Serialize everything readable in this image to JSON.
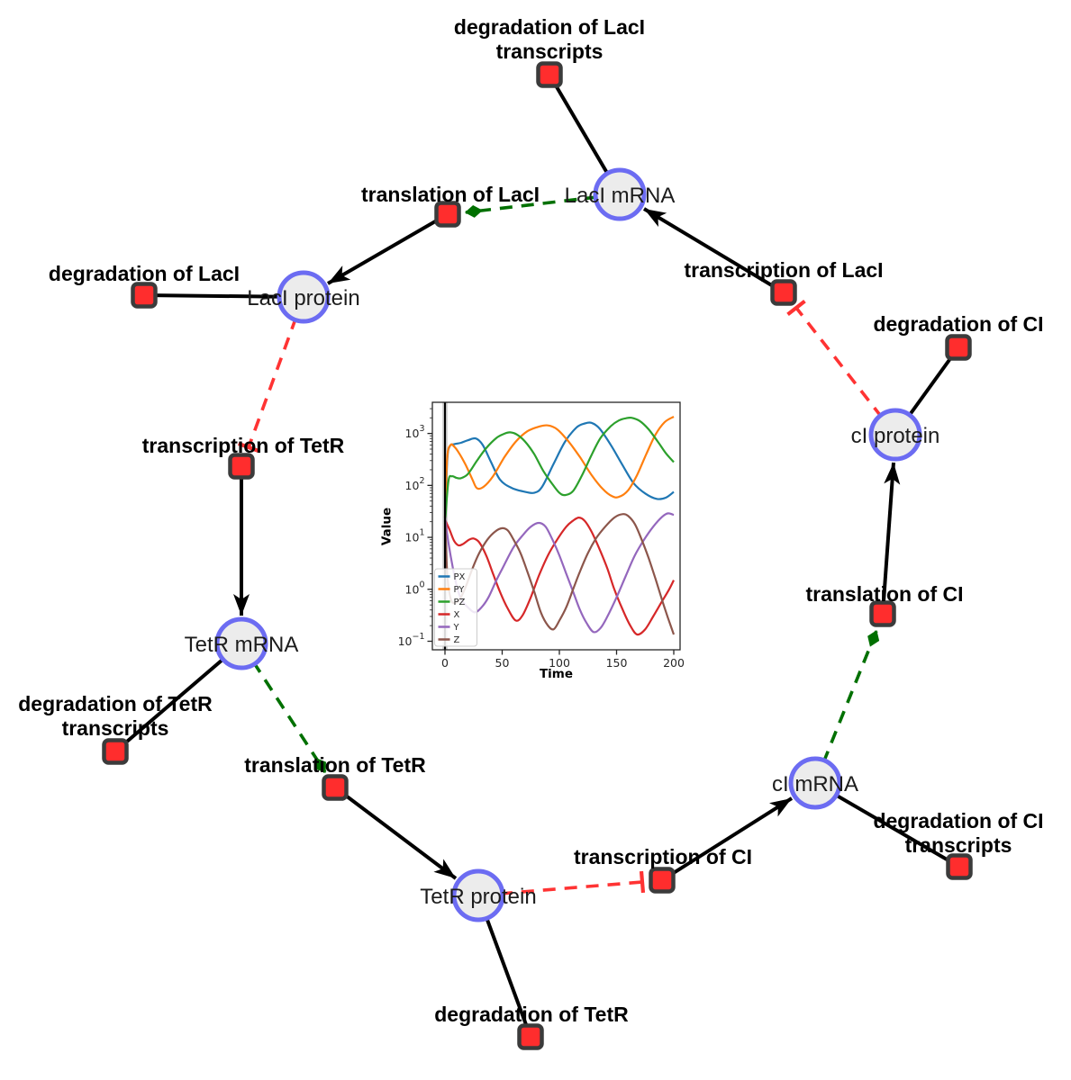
{
  "colors": {
    "species_fill": "#ececec",
    "species_stroke": "#6c6cf2",
    "reaction_fill": "#ff2d2d",
    "reaction_stroke": "#3b3b3b",
    "edge_black": "#000000",
    "edge_modifier_green": "#007000",
    "edge_inhibition_red": "#ff3333"
  },
  "species": {
    "laci_mrna": {
      "label": "LacI mRNA"
    },
    "laci_protein": {
      "label": "LacI protein"
    },
    "tetr_mrna": {
      "label": "TetR mRNA"
    },
    "tetr_protein": {
      "label": "TetR protein"
    },
    "ci_mrna": {
      "label": "cI mRNA"
    },
    "ci_protein": {
      "label": "cI protein"
    }
  },
  "reactions": {
    "deg_laci_tx": {
      "label": "degradation of LacI",
      "label2": "transcripts"
    },
    "tl_laci": {
      "label": "translation of LacI"
    },
    "tx_laci": {
      "label": "transcription of LacI"
    },
    "deg_laci": {
      "label": "degradation of LacI"
    },
    "tx_tetr": {
      "label": "transcription of TetR"
    },
    "deg_tetr_tx": {
      "label": "degradation of TetR",
      "label2": "transcripts"
    },
    "tl_tetr": {
      "label": "translation of TetR"
    },
    "deg_tetr": {
      "label": "degradation of TetR"
    },
    "tx_ci": {
      "label": "transcription of CI"
    },
    "deg_ci_tx": {
      "label": "degradation of CI",
      "label2": "transcripts"
    },
    "tl_ci": {
      "label": "translation of CI"
    },
    "deg_ci": {
      "label": "degradation of CI"
    }
  },
  "chart_data": {
    "type": "line",
    "title": "",
    "xlabel": "Time",
    "ylabel": "Value",
    "x_range": [
      0,
      200
    ],
    "y_scale": "log",
    "y_range_exponents": [
      -1,
      3.6
    ],
    "xticks": [
      0,
      50,
      100,
      150,
      200
    ],
    "ytick_exponents": [
      -1,
      0,
      1,
      2,
      3
    ],
    "grid": false,
    "legend_position": "lower left",
    "vline_at_t": 0,
    "series": [
      {
        "name": "PX",
        "color": "#1f77b4",
        "points": [
          [
            0,
            20
          ],
          [
            2,
            300
          ],
          [
            4,
            560
          ],
          [
            8,
            620
          ],
          [
            14,
            660
          ],
          [
            20,
            740
          ],
          [
            27,
            800
          ],
          [
            33,
            600
          ],
          [
            40,
            290
          ],
          [
            48,
            130
          ],
          [
            58,
            90
          ],
          [
            68,
            77
          ],
          [
            78,
            72
          ],
          [
            85,
            95
          ],
          [
            95,
            260
          ],
          [
            105,
            700
          ],
          [
            115,
            1300
          ],
          [
            122,
            1550
          ],
          [
            128,
            1600
          ],
          [
            135,
            1250
          ],
          [
            145,
            600
          ],
          [
            155,
            250
          ],
          [
            165,
            110
          ],
          [
            175,
            70
          ],
          [
            185,
            55
          ],
          [
            193,
            58
          ],
          [
            200,
            75
          ]
        ]
      },
      {
        "name": "PY",
        "color": "#ff7f0e",
        "points": [
          [
            0,
            25
          ],
          [
            2,
            350
          ],
          [
            5,
            600
          ],
          [
            8,
            560
          ],
          [
            12,
            430
          ],
          [
            18,
            250
          ],
          [
            24,
            130
          ],
          [
            28,
            88
          ],
          [
            34,
            95
          ],
          [
            42,
            150
          ],
          [
            52,
            350
          ],
          [
            62,
            700
          ],
          [
            72,
            1100
          ],
          [
            82,
            1350
          ],
          [
            90,
            1430
          ],
          [
            98,
            1200
          ],
          [
            108,
            700
          ],
          [
            118,
            350
          ],
          [
            128,
            160
          ],
          [
            138,
            85
          ],
          [
            146,
            62
          ],
          [
            152,
            60
          ],
          [
            160,
            80
          ],
          [
            168,
            160
          ],
          [
            176,
            400
          ],
          [
            184,
            950
          ],
          [
            192,
            1650
          ],
          [
            200,
            2100
          ]
        ]
      },
      {
        "name": "PZ",
        "color": "#2ca02c",
        "points": [
          [
            0,
            18
          ],
          [
            3,
            120
          ],
          [
            6,
            150
          ],
          [
            10,
            140
          ],
          [
            14,
            138
          ],
          [
            20,
            165
          ],
          [
            28,
            300
          ],
          [
            36,
            520
          ],
          [
            45,
            820
          ],
          [
            52,
            990
          ],
          [
            57,
            1050
          ],
          [
            63,
            950
          ],
          [
            70,
            700
          ],
          [
            78,
            400
          ],
          [
            86,
            190
          ],
          [
            94,
            105
          ],
          [
            100,
            72
          ],
          [
            105,
            65
          ],
          [
            112,
            78
          ],
          [
            120,
            160
          ],
          [
            128,
            380
          ],
          [
            136,
            820
          ],
          [
            145,
            1380
          ],
          [
            152,
            1780
          ],
          [
            158,
            1960
          ],
          [
            163,
            2000
          ],
          [
            170,
            1750
          ],
          [
            178,
            1200
          ],
          [
            186,
            700
          ],
          [
            193,
            420
          ],
          [
            200,
            280
          ]
        ]
      },
      {
        "name": "X",
        "color": "#d62728",
        "points": [
          [
            0,
            22
          ],
          [
            4,
            14
          ],
          [
            8,
            8.5
          ],
          [
            12,
            7
          ],
          [
            16,
            7.5
          ],
          [
            21,
            9
          ],
          [
            25,
            9.5
          ],
          [
            30,
            8
          ],
          [
            36,
            4.5
          ],
          [
            42,
            2
          ],
          [
            48,
            0.9
          ],
          [
            55,
            0.42
          ],
          [
            62,
            0.25
          ],
          [
            68,
            0.32
          ],
          [
            75,
            0.7
          ],
          [
            82,
            1.8
          ],
          [
            90,
            4.5
          ],
          [
            98,
            9
          ],
          [
            106,
            16
          ],
          [
            112,
            21
          ],
          [
            117,
            24
          ],
          [
            122,
            21
          ],
          [
            128,
            13
          ],
          [
            135,
            6
          ],
          [
            142,
            2.5
          ],
          [
            148,
            1
          ],
          [
            155,
            0.42
          ],
          [
            162,
            0.2
          ],
          [
            168,
            0.135
          ],
          [
            175,
            0.17
          ],
          [
            182,
            0.3
          ],
          [
            190,
            0.6
          ],
          [
            196,
            1
          ],
          [
            200,
            1.5
          ]
        ]
      },
      {
        "name": "Y",
        "color": "#9467bd",
        "points": [
          [
            0,
            25
          ],
          [
            3,
            8
          ],
          [
            7,
            2.5
          ],
          [
            11,
            1
          ],
          [
            15,
            0.6
          ],
          [
            20,
            0.45
          ],
          [
            26,
            0.36
          ],
          [
            32,
            0.45
          ],
          [
            38,
            0.7
          ],
          [
            45,
            1.5
          ],
          [
            52,
            3
          ],
          [
            60,
            6.5
          ],
          [
            68,
            11
          ],
          [
            75,
            16
          ],
          [
            82,
            19
          ],
          [
            88,
            16
          ],
          [
            94,
            9
          ],
          [
            100,
            4.5
          ],
          [
            106,
            2
          ],
          [
            112,
            0.9
          ],
          [
            118,
            0.4
          ],
          [
            124,
            0.22
          ],
          [
            130,
            0.15
          ],
          [
            136,
            0.18
          ],
          [
            142,
            0.3
          ],
          [
            150,
            0.7
          ],
          [
            158,
            1.8
          ],
          [
            166,
            4.5
          ],
          [
            174,
            9
          ],
          [
            182,
            16
          ],
          [
            190,
            25
          ],
          [
            195,
            29
          ],
          [
            200,
            27
          ]
        ]
      },
      {
        "name": "Z",
        "color": "#8c564b",
        "points": [
          [
            0,
            25
          ],
          [
            2,
            2
          ],
          [
            5,
            0.65
          ],
          [
            9,
            0.55
          ],
          [
            13,
            0.65
          ],
          [
            18,
            1.1
          ],
          [
            24,
            2.5
          ],
          [
            30,
            5
          ],
          [
            37,
            9
          ],
          [
            44,
            13
          ],
          [
            50,
            15
          ],
          [
            55,
            13.5
          ],
          [
            60,
            9
          ],
          [
            66,
            5
          ],
          [
            72,
            2.2
          ],
          [
            78,
            0.9
          ],
          [
            84,
            0.35
          ],
          [
            90,
            0.2
          ],
          [
            95,
            0.17
          ],
          [
            100,
            0.25
          ],
          [
            106,
            0.45
          ],
          [
            112,
            1
          ],
          [
            118,
            2.2
          ],
          [
            125,
            5
          ],
          [
            132,
            9.5
          ],
          [
            140,
            16
          ],
          [
            148,
            24
          ],
          [
            155,
            28
          ],
          [
            160,
            26
          ],
          [
            166,
            18
          ],
          [
            172,
            9
          ],
          [
            178,
            4
          ],
          [
            184,
            1.6
          ],
          [
            190,
            0.6
          ],
          [
            195,
            0.28
          ],
          [
            200,
            0.135
          ]
        ]
      }
    ]
  }
}
